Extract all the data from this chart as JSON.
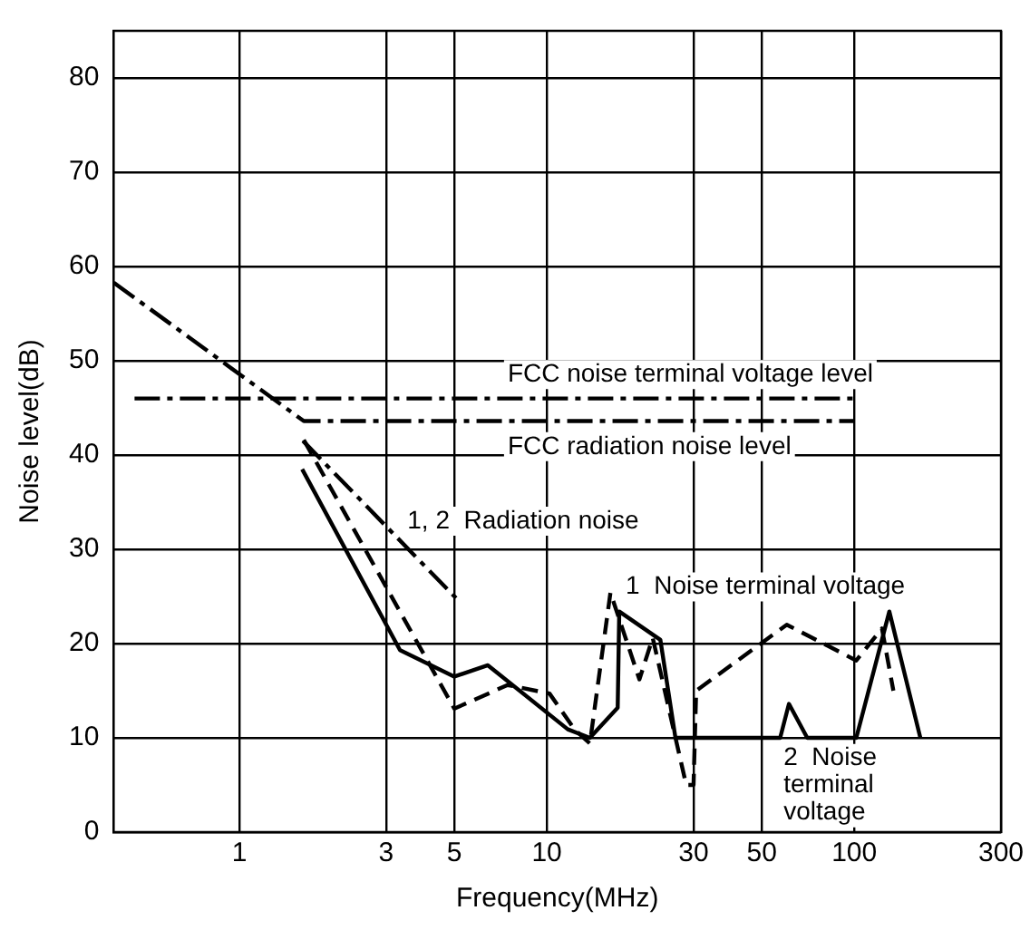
{
  "chart_data": {
    "type": "line",
    "xlabel": "Frequency(MHz)",
    "ylabel": "Noise level(dB)",
    "log": "x",
    "xlim": [
      0.39,
      300
    ],
    "ylim": [
      0,
      85
    ],
    "xticks": [
      1,
      3,
      5,
      10,
      30,
      50,
      100,
      300
    ],
    "yticks": [
      0,
      10,
      20,
      30,
      40,
      50,
      60,
      70,
      80
    ],
    "grid": true,
    "legend": false,
    "marker": "none",
    "series": [
      {
        "color": "#000000",
        "line_style": "dashdot",
        "x": [
          0.39,
          1.62,
          100
        ],
        "values": [
          58.3,
          43.6,
          43.6
        ]
      },
      {
        "color": "#000000",
        "line_style": "dashdot",
        "x": [
          0.456,
          100
        ],
        "values": [
          46.0,
          46.0
        ]
      },
      {
        "color": "#000000",
        "line_style": "dashdot",
        "x": [
          1.61,
          5.25
        ],
        "values": [
          41.5,
          24.3
        ]
      },
      {
        "color": "#000000",
        "line_style": "solid",
        "x": [
          1.6,
          3.33,
          5.0,
          6.43,
          11.7,
          13.8,
          17.0,
          17.2,
          23.4,
          26.2,
          57.4,
          61.3,
          70.3,
          101.5,
          130,
          164
        ],
        "values": [
          38.5,
          19.3,
          16.5,
          17.7,
          10.9,
          10,
          13.2,
          23.4,
          20.4,
          10,
          10,
          13.6,
          10,
          10,
          23.4,
          10
        ]
      },
      {
        "color": "#000000",
        "line_style": "dashed",
        "x": [
          1.62,
          5.0,
          7.45,
          10.2,
          12.3,
          13.8,
          16.1,
          20.0,
          22.1,
          28.4,
          30,
          30.6,
          60.3,
          101.5,
          123,
          134
        ],
        "values": [
          41.6,
          13.1,
          15.6,
          14.7,
          10.9,
          9.4,
          25.4,
          16.2,
          20.6,
          5.0,
          5.0,
          15.0,
          22.0,
          18.2,
          21.6,
          15.0
        ]
      }
    ],
    "annotations": [
      "FCC noise terminal voltage level",
      "FCC radiation noise level",
      "1, 2  Radiation noise",
      "1  Noise terminal voltage",
      "2  Noise terminal voltage"
    ]
  }
}
